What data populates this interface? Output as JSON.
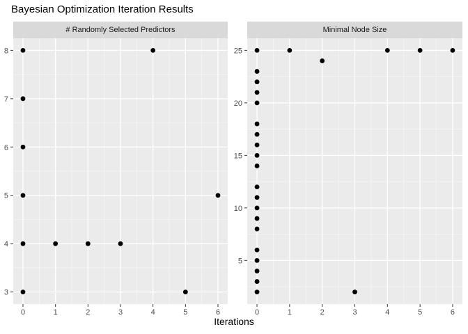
{
  "title": "Bayesian Optimization Iteration Results",
  "xlabel": "Iterations",
  "colors": {
    "panel_bg": "#EBEBEB",
    "strip_bg": "#D9D9D9",
    "grid_major": "#FFFFFF",
    "grid_minor": "#F7F7F7",
    "axis_text": "#4D4D4D",
    "tick_mark": "#333333",
    "point": "#000000",
    "title_text": "#000000",
    "strip_text": "#1A1A1A"
  },
  "chart_data": [
    {
      "type": "scatter",
      "facet_label": "# Randomly Selected Predictors",
      "x": [
        0,
        0,
        0,
        0,
        0,
        0,
        1,
        2,
        3,
        4,
        5,
        6
      ],
      "y": [
        3,
        4,
        5,
        6,
        7,
        8,
        4,
        4,
        4,
        8,
        3,
        5
      ],
      "xlim": [
        -0.3,
        6.3
      ],
      "ylim": [
        2.75,
        8.25
      ],
      "x_ticks": [
        0,
        1,
        2,
        3,
        4,
        5,
        6
      ],
      "x_minor": [
        0.5,
        1.5,
        2.5,
        3.5,
        4.5,
        5.5
      ],
      "y_ticks": [
        3,
        4,
        5,
        6,
        7,
        8
      ],
      "y_minor": [
        3.5,
        4.5,
        5.5,
        6.5,
        7.5
      ],
      "grid": "on",
      "legend": "none"
    },
    {
      "type": "scatter",
      "facet_label": "Minimal Node Size",
      "x": [
        0,
        0,
        0,
        0,
        0,
        0,
        0,
        0,
        0,
        0,
        0,
        0,
        0,
        0,
        0,
        0,
        0,
        0,
        0,
        0,
        1,
        2,
        3,
        4,
        5,
        6
      ],
      "y": [
        2,
        3,
        4,
        5,
        6,
        8,
        9,
        10,
        11,
        12,
        14,
        15,
        16,
        17,
        18,
        20,
        21,
        22,
        23,
        25,
        25,
        24,
        2,
        25,
        25,
        25
      ],
      "xlim": [
        -0.3,
        6.3
      ],
      "ylim": [
        0.85,
        26.15
      ],
      "x_ticks": [
        0,
        1,
        2,
        3,
        4,
        5,
        6
      ],
      "x_minor": [
        0.5,
        1.5,
        2.5,
        3.5,
        4.5,
        5.5
      ],
      "y_ticks": [
        5,
        10,
        15,
        20,
        25
      ],
      "y_minor": [
        2.5,
        7.5,
        12.5,
        17.5,
        22.5
      ],
      "grid": "on",
      "legend": "none"
    }
  ]
}
